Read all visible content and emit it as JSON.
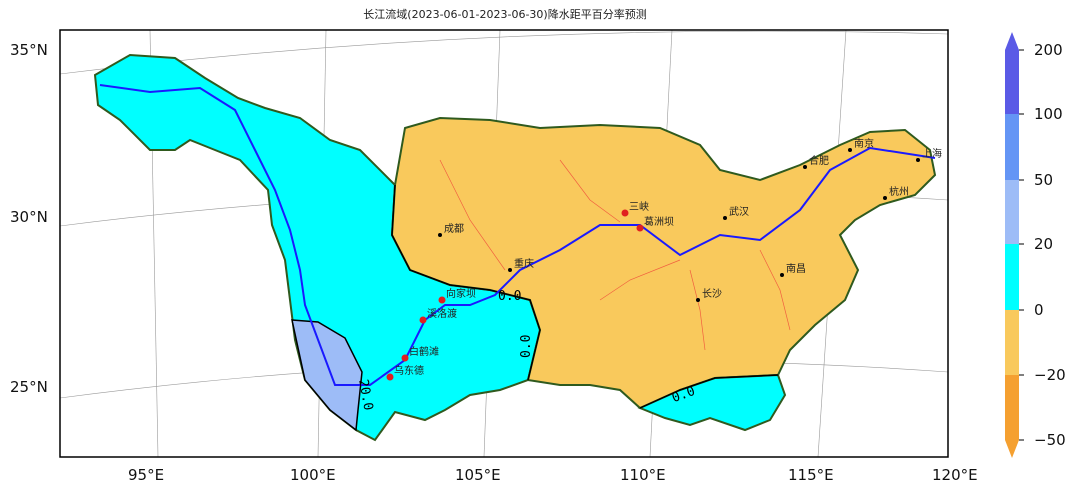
{
  "title": "长江流域(2023-06-01-2023-06-30)降水距平百分率预测",
  "axes": {
    "lat_labels": [
      "35°N",
      "30°N",
      "25°N"
    ],
    "lon_labels": [
      "95°E",
      "100°E",
      "105°E",
      "110°E",
      "115°E",
      "120°E"
    ]
  },
  "colorbar": {
    "ticks": [
      "200",
      "100",
      "50",
      "20",
      "0",
      "−20",
      "−50"
    ],
    "colors": [
      "#5a5ae6",
      "#6495f5",
      "#9dbcf7",
      "#00ffff",
      "#f9c95c",
      "#f5a030"
    ]
  },
  "cities": [
    {
      "name": "合肥"
    },
    {
      "name": "南京"
    },
    {
      "name": "上海"
    },
    {
      "name": "杭州"
    },
    {
      "name": "武汉"
    },
    {
      "name": "南昌"
    },
    {
      "name": "长沙"
    },
    {
      "name": "三峡"
    },
    {
      "name": "葛洲坝"
    },
    {
      "name": "重庆"
    },
    {
      "name": "成都"
    },
    {
      "name": "向家坝"
    },
    {
      "name": "溪洛渡"
    },
    {
      "name": "白鹤滩"
    },
    {
      "name": "乌东德"
    }
  ],
  "contour_labels": [
    "0.0",
    "0.0",
    "0.0",
    "20.0"
  ]
}
